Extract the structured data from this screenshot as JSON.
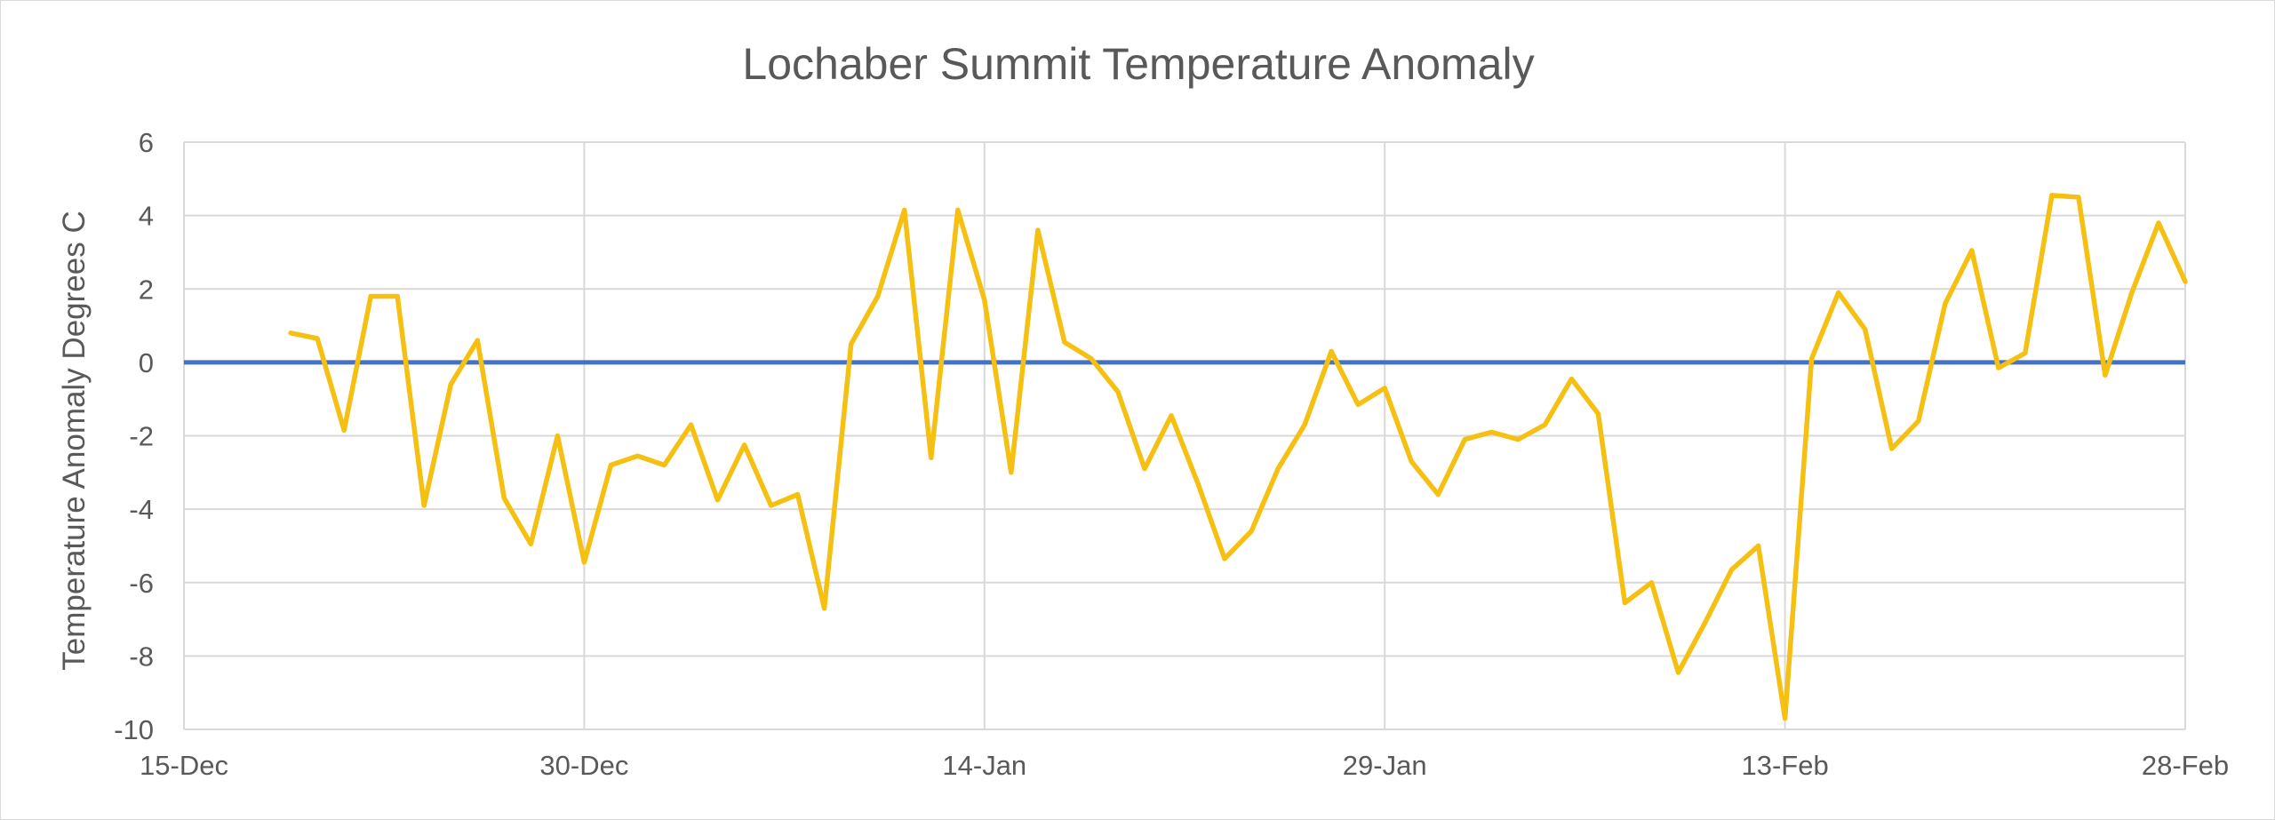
{
  "chart_data": {
    "type": "line",
    "title": "Lochaber Summit Temperature Anomaly",
    "xlabel": "",
    "ylabel": "Temperature Anomaly Degrees C",
    "x_ticks": [
      "15-Dec",
      "30-Dec",
      "14-Jan",
      "29-Jan",
      "13-Feb",
      "28-Feb"
    ],
    "xlim": [
      "15-Dec",
      "28-Feb"
    ],
    "ylim": [
      -10,
      6
    ],
    "y_ticks": [
      6,
      4,
      2,
      0,
      -2,
      -4,
      -6,
      -8,
      -10
    ],
    "grid": true,
    "legend": "none",
    "colors": {
      "series": "#f5c012",
      "reference": "#4472c4",
      "grid": "#d9d9d9",
      "text": "#595959"
    },
    "reference_line": {
      "y": 0
    },
    "x": [
      "19-Dec",
      "20-Dec",
      "21-Dec",
      "22-Dec",
      "23-Dec",
      "24-Dec",
      "25-Dec",
      "26-Dec",
      "27-Dec",
      "28-Dec",
      "29-Dec",
      "30-Dec",
      "31-Dec",
      "1-Jan",
      "2-Jan",
      "3-Jan",
      "4-Jan",
      "5-Jan",
      "6-Jan",
      "7-Jan",
      "8-Jan",
      "9-Jan",
      "10-Jan",
      "11-Jan",
      "12-Jan",
      "13-Jan",
      "14-Jan",
      "15-Jan",
      "16-Jan",
      "17-Jan",
      "18-Jan",
      "19-Jan",
      "20-Jan",
      "21-Jan",
      "22-Jan",
      "23-Jan",
      "24-Jan",
      "25-Jan",
      "26-Jan",
      "27-Jan",
      "28-Jan",
      "29-Jan",
      "30-Jan",
      "31-Jan",
      "1-Feb",
      "2-Feb",
      "3-Feb",
      "4-Feb",
      "5-Feb",
      "6-Feb",
      "7-Feb",
      "8-Feb",
      "9-Feb",
      "10-Feb",
      "11-Feb",
      "12-Feb",
      "13-Feb",
      "14-Feb",
      "15-Feb",
      "16-Feb",
      "17-Feb",
      "18-Feb",
      "19-Feb",
      "20-Feb",
      "21-Feb",
      "22-Feb",
      "23-Feb",
      "24-Feb",
      "25-Feb",
      "26-Feb",
      "27-Feb",
      "28-Feb"
    ],
    "series": [
      {
        "values": [
          0.8,
          0.65,
          -1.85,
          1.8,
          1.8,
          -3.9,
          -0.6,
          0.6,
          -3.7,
          -4.95,
          -2.0,
          -5.45,
          -2.8,
          -2.55,
          -2.8,
          -1.7,
          -3.75,
          -2.25,
          -3.9,
          -3.6,
          -6.7,
          0.5,
          1.8,
          4.15,
          -2.6,
          4.15,
          1.7,
          -3.0,
          3.6,
          0.55,
          0.1,
          -0.8,
          -2.9,
          -1.45,
          -3.3,
          -5.35,
          -4.6,
          -2.9,
          -1.7,
          0.3,
          -1.15,
          -0.7,
          -2.7,
          -3.6,
          -2.1,
          -1.9,
          -2.1,
          -1.7,
          -0.45,
          -1.4,
          -6.55,
          -6.0,
          -8.45,
          -7.1,
          -5.65,
          -5.0,
          -9.7,
          0.1,
          1.9,
          0.9,
          -2.35,
          -1.6,
          1.6,
          3.05,
          -0.15,
          0.25,
          4.55,
          4.5,
          -0.35,
          1.9,
          3.8,
          2.2
        ]
      }
    ]
  }
}
